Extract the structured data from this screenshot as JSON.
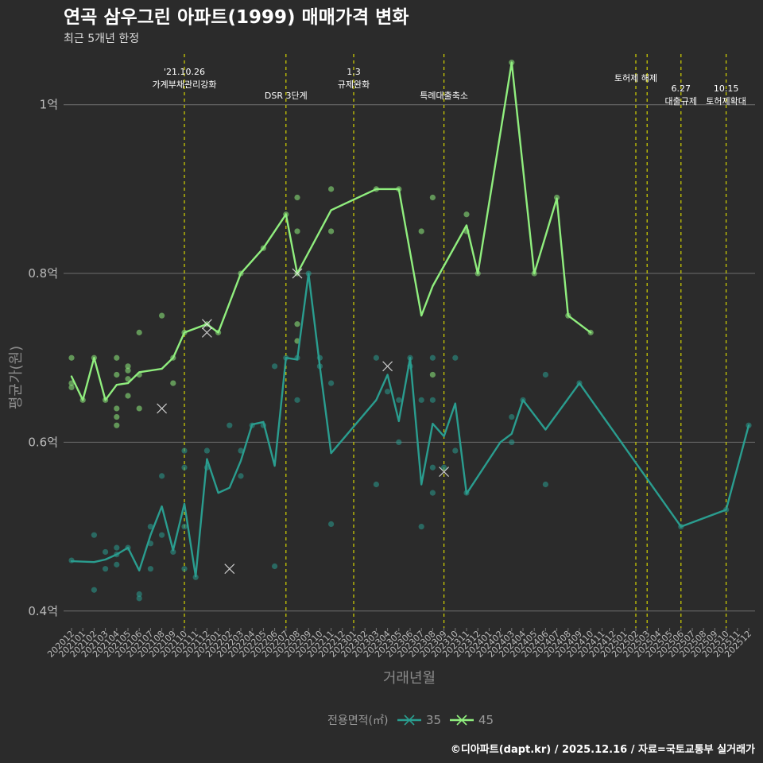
{
  "chart_data": {
    "type": "line",
    "title": "연곡 삼우그린 아파트(1999) 매매가격 변화",
    "subtitle": "최근 5개년 한정",
    "xlabel": "거래년월",
    "ylabel": "평균가(원)",
    "ylim": [
      0.38,
      1.06
    ],
    "yticks": [
      {
        "v": 0.4,
        "label": "0.4억"
      },
      {
        "v": 0.6,
        "label": "0.6억"
      },
      {
        "v": 0.8,
        "label": "0.8억"
      },
      {
        "v": 1.0,
        "label": "1억"
      }
    ],
    "categories": [
      "202012",
      "202101",
      "202102",
      "202103",
      "202104",
      "202105",
      "202106",
      "202107",
      "202108",
      "202109",
      "202110",
      "202111",
      "202112",
      "202201",
      "202202",
      "202203",
      "202204",
      "202205",
      "202206",
      "202207",
      "202208",
      "202209",
      "202210",
      "202211",
      "202212",
      "202301",
      "202302",
      "202303",
      "202304",
      "202305",
      "202306",
      "202307",
      "202308",
      "202309",
      "202310",
      "202311",
      "202312",
      "202401",
      "202402",
      "202403",
      "202404",
      "202405",
      "202406",
      "202407",
      "202408",
      "202409",
      "202410",
      "202411",
      "202412",
      "202501",
      "202502",
      "202503",
      "202504",
      "202505",
      "202506",
      "202507",
      "202508",
      "202509",
      "202510",
      "202511",
      "202512"
    ],
    "events": [
      {
        "month": "202110",
        "line1": "'21.10.26",
        "line2": "가계부채관리강화",
        "level": "top"
      },
      {
        "month": "202207",
        "line1": "",
        "line2": "DSR 3단계",
        "level": "bottom"
      },
      {
        "month": "202301",
        "line1": "1.3",
        "line2": "규제완화",
        "level": "top"
      },
      {
        "month": "202309",
        "line1": "",
        "line2": "특례대출축소",
        "level": "bottom"
      },
      {
        "month": "202502",
        "line1": "",
        "line2": "토허제 해제",
        "level": "top2"
      },
      {
        "month": "202503",
        "line1": "",
        "line2": "",
        "level": "none"
      },
      {
        "month": "202506",
        "line1": "6.27",
        "line2": "대출규제",
        "level": "low"
      },
      {
        "month": "202510",
        "line1": "10.15",
        "line2": "토허제확대",
        "level": "low"
      }
    ],
    "series": [
      {
        "name": "35",
        "color": "#2a9d8f",
        "line": [
          [
            "202012",
            0.459
          ],
          [
            "202102",
            0.458
          ],
          [
            "202103",
            0.461
          ],
          [
            "202104",
            0.467
          ],
          [
            "202105",
            0.475
          ],
          [
            "202106",
            0.448
          ],
          [
            "202107",
            0.49
          ],
          [
            "202108",
            0.524
          ],
          [
            "202109",
            0.472
          ],
          [
            "202110",
            0.527
          ],
          [
            "202111",
            0.441
          ],
          [
            "202112",
            0.58
          ],
          [
            "202201",
            0.54
          ],
          [
            "202202",
            0.546
          ],
          [
            "202203",
            0.578
          ],
          [
            "202204",
            0.621
          ],
          [
            "202205",
            0.624
          ],
          [
            "202206",
            0.572
          ],
          [
            "202207",
            0.7
          ],
          [
            "202208",
            0.698
          ],
          [
            "202209",
            0.8
          ],
          [
            "202210",
            0.69
          ],
          [
            "202211",
            0.587
          ],
          [
            "202303",
            0.65
          ],
          [
            "202304",
            0.68
          ],
          [
            "202305",
            0.625
          ],
          [
            "202306",
            0.7
          ],
          [
            "202307",
            0.55
          ],
          [
            "202308",
            0.622
          ],
          [
            "202309",
            0.607
          ],
          [
            "202310",
            0.646
          ],
          [
            "202311",
            0.539
          ],
          [
            "202402",
            0.6
          ],
          [
            "202403",
            0.61
          ],
          [
            "202404",
            0.65
          ],
          [
            "202406",
            0.615
          ],
          [
            "202409",
            0.67
          ],
          [
            "202506",
            0.5
          ],
          [
            "202510",
            0.52
          ],
          [
            "202512",
            0.62
          ]
        ],
        "points": [
          [
            "202012",
            0.46
          ],
          [
            "202102",
            0.425
          ],
          [
            "202102",
            0.49
          ],
          [
            "202103",
            0.45
          ],
          [
            "202103",
            0.47
          ],
          [
            "202104",
            0.455
          ],
          [
            "202104",
            0.475
          ],
          [
            "202104",
            0.467
          ],
          [
            "202105",
            0.475
          ],
          [
            "202106",
            0.415
          ],
          [
            "202106",
            0.42
          ],
          [
            "202107",
            0.45
          ],
          [
            "202107",
            0.48
          ],
          [
            "202107",
            0.5
          ],
          [
            "202108",
            0.49
          ],
          [
            "202108",
            0.56
          ],
          [
            "202109",
            0.47
          ],
          [
            "202110",
            0.45
          ],
          [
            "202110",
            0.5
          ],
          [
            "202110",
            0.57
          ],
          [
            "202110",
            0.59
          ],
          [
            "202111",
            0.44
          ],
          [
            "202112",
            0.59
          ],
          [
            "202112",
            0.57
          ],
          [
            "202202",
            0.62
          ],
          [
            "202203",
            0.59
          ],
          [
            "202203",
            0.56
          ],
          [
            "202204",
            0.62
          ],
          [
            "202205",
            0.62
          ],
          [
            "202206",
            0.69
          ],
          [
            "202206",
            0.453
          ],
          [
            "202207",
            0.7
          ],
          [
            "202208",
            0.65
          ],
          [
            "202208",
            0.7
          ],
          [
            "202209",
            0.8
          ],
          [
            "202210",
            0.7
          ],
          [
            "202210",
            0.69
          ],
          [
            "202211",
            0.67
          ],
          [
            "202211",
            0.503
          ],
          [
            "202303",
            0.7
          ],
          [
            "202303",
            0.55
          ],
          [
            "202304",
            0.66
          ],
          [
            "202305",
            0.6
          ],
          [
            "202305",
            0.65
          ],
          [
            "202306",
            0.7
          ],
          [
            "202306",
            0.69
          ],
          [
            "202307",
            0.5
          ],
          [
            "202307",
            0.65
          ],
          [
            "202308",
            0.7
          ],
          [
            "202308",
            0.65
          ],
          [
            "202308",
            0.57
          ],
          [
            "202308",
            0.54
          ],
          [
            "202309",
            0.57
          ],
          [
            "202310",
            0.7
          ],
          [
            "202310",
            0.59
          ],
          [
            "202311",
            0.54
          ],
          [
            "202403",
            0.6
          ],
          [
            "202403",
            0.63
          ],
          [
            "202404",
            0.65
          ],
          [
            "202406",
            0.68
          ],
          [
            "202406",
            0.55
          ],
          [
            "202409",
            0.67
          ],
          [
            "202506",
            0.5
          ],
          [
            "202510",
            0.52
          ],
          [
            "202512",
            0.62
          ]
        ],
        "x_marks": [
          [
            "202202",
            0.45
          ],
          [
            "202304",
            0.69
          ],
          [
            "202309",
            0.565
          ]
        ]
      },
      {
        "name": "45",
        "color": "#90ee7e",
        "line": [
          [
            "202012",
            0.678
          ],
          [
            "202101",
            0.65
          ],
          [
            "202102",
            0.7
          ],
          [
            "202103",
            0.65
          ],
          [
            "202104",
            0.668
          ],
          [
            "202105",
            0.67
          ],
          [
            "202106",
            0.683
          ],
          [
            "202108",
            0.687
          ],
          [
            "202109",
            0.7
          ],
          [
            "202110",
            0.73
          ],
          [
            "202112",
            0.74
          ],
          [
            "202201",
            0.73
          ],
          [
            "202203",
            0.8
          ],
          [
            "202205",
            0.83
          ],
          [
            "202207",
            0.87
          ],
          [
            "202208",
            0.8
          ],
          [
            "202211",
            0.875
          ],
          [
            "202303",
            0.9
          ],
          [
            "202305",
            0.9
          ],
          [
            "202307",
            0.75
          ],
          [
            "202308",
            0.785
          ],
          [
            "202311",
            0.857
          ],
          [
            "202312",
            0.8
          ],
          [
            "202403",
            1.05
          ],
          [
            "202405",
            0.8
          ],
          [
            "202407",
            0.889
          ],
          [
            "202408",
            0.75
          ],
          [
            "202410",
            0.73
          ]
        ],
        "points": [
          [
            "202012",
            0.7
          ],
          [
            "202012",
            0.665
          ],
          [
            "202012",
            0.67
          ],
          [
            "202101",
            0.65
          ],
          [
            "202102",
            0.7
          ],
          [
            "202103",
            0.65
          ],
          [
            "202104",
            0.7
          ],
          [
            "202104",
            0.68
          ],
          [
            "202104",
            0.64
          ],
          [
            "202104",
            0.62
          ],
          [
            "202104",
            0.63
          ],
          [
            "202105",
            0.69
          ],
          [
            "202105",
            0.685
          ],
          [
            "202105",
            0.675
          ],
          [
            "202105",
            0.655
          ],
          [
            "202106",
            0.73
          ],
          [
            "202106",
            0.68
          ],
          [
            "202106",
            0.64
          ],
          [
            "202108",
            0.75
          ],
          [
            "202109",
            0.7
          ],
          [
            "202109",
            0.67
          ],
          [
            "202110",
            0.73
          ],
          [
            "202112",
            0.74
          ],
          [
            "202201",
            0.73
          ],
          [
            "202203",
            0.8
          ],
          [
            "202205",
            0.83
          ],
          [
            "202207",
            0.87
          ],
          [
            "202208",
            0.89
          ],
          [
            "202208",
            0.85
          ],
          [
            "202208",
            0.74
          ],
          [
            "202208",
            0.72
          ],
          [
            "202208",
            0.8
          ],
          [
            "202211",
            0.9
          ],
          [
            "202211",
            0.85
          ],
          [
            "202303",
            0.9
          ],
          [
            "202305",
            0.9
          ],
          [
            "202307",
            0.85
          ],
          [
            "202308",
            0.89
          ],
          [
            "202308",
            0.68
          ],
          [
            "202311",
            0.87
          ],
          [
            "202311",
            0.85
          ],
          [
            "202312",
            0.8
          ],
          [
            "202403",
            1.05
          ],
          [
            "202405",
            0.8
          ],
          [
            "202407",
            0.89
          ],
          [
            "202408",
            0.75
          ],
          [
            "202410",
            0.73
          ]
        ],
        "x_marks": [
          [
            "202108",
            0.64
          ],
          [
            "202112",
            0.74
          ],
          [
            "202112",
            0.73
          ],
          [
            "202208",
            0.8
          ]
        ]
      }
    ],
    "legend": {
      "title": "전용면적(㎡)",
      "position": "bottom"
    },
    "caption": "©디아파트(dapt.kr) / 2025.12.16 / 자료=국토교통부 실거래가"
  }
}
